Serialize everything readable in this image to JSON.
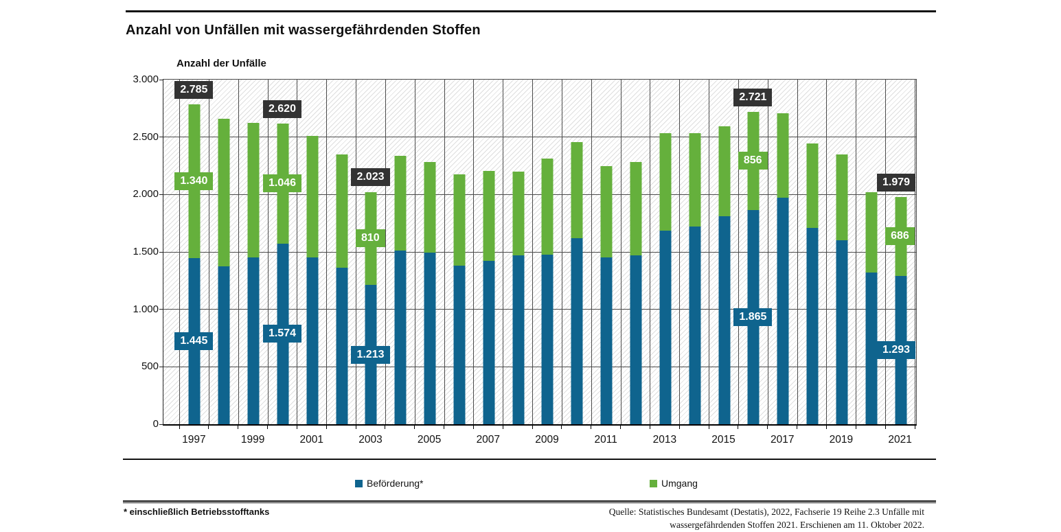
{
  "title": "Anzahl von Unfällen mit wassergefährdenden Stoffen",
  "y_axis_title": "Anzahl der Unfälle",
  "legend": [
    {
      "label": "Beförderung*",
      "color": "#0f648e"
    },
    {
      "label": "Umgang",
      "color": "#65b03c"
    }
  ],
  "footnote": "* einschließlich Betriebsstofftanks",
  "source_line1": "Quelle: Statistisches Bundesamt (Destatis), 2022, Fachserie 19 Reihe 2.3 Unfälle mit",
  "source_line2": "wassergefährdenden Stoffen 2021. Erschienen am 11. Oktober 2022.",
  "colors": {
    "befoerderung_blue": "#0f648e",
    "umgang_green": "#65b03c",
    "total_badge_dark": "#333333",
    "gridline": "#4a4a4a"
  },
  "chart_data": {
    "type": "bar",
    "stacked": true,
    "title": "Anzahl von Unfällen mit wassergefährdenden Stoffen",
    "xlabel": "",
    "ylabel": "Anzahl der Unfälle",
    "ylim": [
      0,
      3000
    ],
    "grid": true,
    "legend_position": "bottom",
    "y_tick_values": [
      0,
      500,
      1000,
      1500,
      2000,
      2500,
      3000
    ],
    "y_tick_labels": [
      "0",
      "500",
      "1.000",
      "1.500",
      "2.000",
      "2.500",
      "3.000"
    ],
    "x_tick_labels": [
      "1997",
      "1999",
      "2001",
      "2003",
      "2005",
      "2007",
      "2009",
      "2011",
      "2013",
      "2015",
      "2017",
      "2019",
      "2021"
    ],
    "years": [
      1997,
      1998,
      1999,
      2000,
      2001,
      2002,
      2003,
      2004,
      2005,
      2006,
      2007,
      2008,
      2009,
      2010,
      2011,
      2012,
      2013,
      2014,
      2015,
      2016,
      2017,
      2018,
      2019,
      2020,
      2021
    ],
    "series": [
      {
        "name": "Beförderung*",
        "color": "#0f648e",
        "values": [
          1445,
          1375,
          1455,
          1574,
          1450,
          1365,
          1213,
          1510,
          1495,
          1380,
          1425,
          1470,
          1475,
          1620,
          1455,
          1470,
          1685,
          1720,
          1810,
          1865,
          1970,
          1710,
          1600,
          1320,
          1293
        ]
      },
      {
        "name": "Umgang",
        "color": "#65b03c",
        "values": [
          1340,
          1285,
          1170,
          1046,
          1060,
          985,
          810,
          825,
          790,
          795,
          780,
          730,
          835,
          835,
          795,
          815,
          850,
          815,
          785,
          856,
          735,
          735,
          750,
          700,
          686
        ]
      }
    ],
    "callouts": [
      {
        "year": 1997,
        "total_label": "2.785",
        "befoerderung_label": "1.445",
        "umgang_label": "1.340"
      },
      {
        "year": 2000,
        "total_label": "2.620",
        "befoerderung_label": "1.574",
        "umgang_label": "1.046"
      },
      {
        "year": 2003,
        "total_label": "2.023",
        "befoerderung_label": "1.213",
        "umgang_label": "810"
      },
      {
        "year": 2016,
        "total_label": "2.721",
        "befoerderung_label": "1.865",
        "umgang_label": "856"
      },
      {
        "year": 2021,
        "total_label": "1.979",
        "befoerderung_label": "1.293",
        "umgang_label": "686"
      }
    ]
  }
}
